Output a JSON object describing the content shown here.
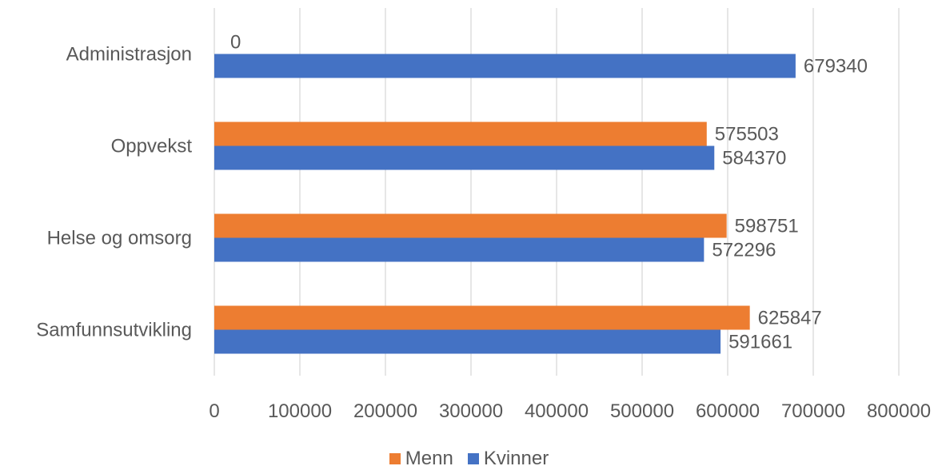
{
  "chart_data": {
    "type": "bar",
    "orientation": "horizontal",
    "categories": [
      "Administrasjon",
      "Oppvekst",
      "Helse og omsorg",
      "Samfunnsutvikling"
    ],
    "series": [
      {
        "name": "Menn",
        "color": "#ED7D31",
        "values": [
          0,
          575503,
          598751,
          625847
        ],
        "labels": [
          "0",
          "575503",
          "598751",
          "625847"
        ]
      },
      {
        "name": "Kvinner",
        "color": "#4472C4",
        "values": [
          679340,
          584370,
          572296,
          591661
        ],
        "labels": [
          "679340",
          "584370",
          "572296",
          "591661"
        ]
      }
    ],
    "xlim": [
      0,
      800000
    ],
    "xticks": [
      "0",
      "100000",
      "200000",
      "300000",
      "400000",
      "500000",
      "600000",
      "700000",
      "800000"
    ],
    "grid": true,
    "legend_position": "bottom",
    "title": "",
    "xlabel": "",
    "ylabel": ""
  }
}
